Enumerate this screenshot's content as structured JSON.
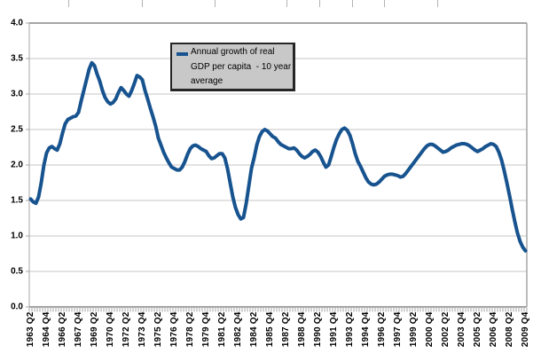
{
  "chart_data": {
    "type": "line",
    "title": "",
    "legend": {
      "position": "top-center-inside",
      "lines": [
        "Annual growth of real",
        "GDP per capita  - 10 year",
        "average"
      ]
    },
    "ylim": [
      0.0,
      4.0
    ],
    "y_tick_step": 0.5,
    "y_tick_labels": [
      "0.0",
      "0.5",
      "1.0",
      "1.5",
      "2.0",
      "2.5",
      "3.0",
      "3.5",
      "4.0"
    ],
    "grid": true,
    "x_tick_every": 6,
    "x_tick_labels": [
      "1963 Q2",
      "1964 Q4",
      "1966 Q2",
      "1967 Q4",
      "1969 Q2",
      "1970 Q4",
      "1972 Q2",
      "1973 Q4",
      "1975 Q2",
      "1976 Q4",
      "1978 Q2",
      "1979 Q4",
      "1981 Q2",
      "1982 Q4",
      "1984 Q2",
      "1985 Q4",
      "1987 Q2",
      "1988 Q4",
      "1990 Q2",
      "1991 Q4",
      "1993 Q2",
      "1994 Q4",
      "1996 Q2",
      "1997 Q4",
      "1999 Q2",
      "2000 Q4",
      "2002 Q2",
      "2003 Q4",
      "2005 Q2",
      "2006 Q4",
      "2008 Q2",
      "2009 Q4"
    ],
    "series": [
      {
        "name": "Annual growth of real GDP per capita - 10 year average",
        "color": "#17538f",
        "x_start": "1963 Q2",
        "frequency": "quarterly",
        "values": [
          1.52,
          1.48,
          1.46,
          1.55,
          1.75,
          2.0,
          2.17,
          2.24,
          2.26,
          2.23,
          2.21,
          2.3,
          2.45,
          2.58,
          2.64,
          2.66,
          2.68,
          2.69,
          2.74,
          2.9,
          3.05,
          3.2,
          3.35,
          3.44,
          3.4,
          3.28,
          3.18,
          3.05,
          2.95,
          2.89,
          2.86,
          2.88,
          2.93,
          3.02,
          3.09,
          3.05,
          3.0,
          2.97,
          3.05,
          3.15,
          3.26,
          3.24,
          3.2,
          3.05,
          2.93,
          2.8,
          2.68,
          2.55,
          2.38,
          2.28,
          2.18,
          2.1,
          2.03,
          1.97,
          1.95,
          1.93,
          1.93,
          1.97,
          2.05,
          2.15,
          2.23,
          2.27,
          2.28,
          2.26,
          2.23,
          2.21,
          2.19,
          2.13,
          2.09,
          2.1,
          2.13,
          2.16,
          2.16,
          2.1,
          1.95,
          1.75,
          1.55,
          1.4,
          1.3,
          1.24,
          1.26,
          1.45,
          1.7,
          1.95,
          2.1,
          2.28,
          2.4,
          2.47,
          2.5,
          2.48,
          2.44,
          2.4,
          2.38,
          2.33,
          2.29,
          2.27,
          2.25,
          2.23,
          2.23,
          2.24,
          2.21,
          2.16,
          2.12,
          2.1,
          2.12,
          2.15,
          2.19,
          2.21,
          2.18,
          2.12,
          2.04,
          1.97,
          2.0,
          2.12,
          2.25,
          2.36,
          2.44,
          2.5,
          2.52,
          2.49,
          2.42,
          2.3,
          2.16,
          2.05,
          1.98,
          1.9,
          1.82,
          1.76,
          1.73,
          1.72,
          1.73,
          1.76,
          1.8,
          1.84,
          1.86,
          1.87,
          1.87,
          1.86,
          1.85,
          1.83,
          1.84,
          1.88,
          1.93,
          1.98,
          2.03,
          2.08,
          2.13,
          2.18,
          2.23,
          2.27,
          2.29,
          2.29,
          2.27,
          2.24,
          2.21,
          2.18,
          2.19,
          2.21,
          2.24,
          2.26,
          2.28,
          2.29,
          2.3,
          2.3,
          2.29,
          2.27,
          2.24,
          2.21,
          2.19,
          2.21,
          2.23,
          2.26,
          2.28,
          2.3,
          2.29,
          2.26,
          2.18,
          2.07,
          1.92,
          1.75,
          1.57,
          1.38,
          1.2,
          1.04,
          0.92,
          0.84,
          0.79
        ]
      }
    ]
  },
  "colors": {
    "line": "#17538f",
    "gridline": "#c6c6c6",
    "plot_border": "#a6a6a6",
    "tick": "#9e9e9e",
    "axis_label": "#000000",
    "legend_bg": "#c8c8c8",
    "legend_border": "#262626",
    "column_edge": "#b3b3b3",
    "background": "#ffffff"
  },
  "background": {
    "column_edge_x": [
      77,
      160,
      242,
      323,
      360,
      397,
      433,
      493
    ],
    "column_edge_height": 8
  }
}
